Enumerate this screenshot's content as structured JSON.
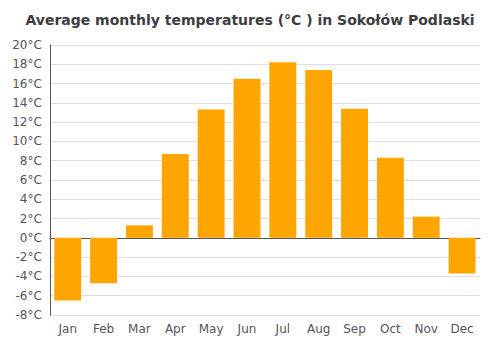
{
  "chart_data": {
    "type": "bar",
    "title": "Average monthly temperatures (°C ) in Sokołów Podlaski",
    "categories": [
      "Jan",
      "Feb",
      "Mar",
      "Apr",
      "May",
      "Jun",
      "Jul",
      "Aug",
      "Sep",
      "Oct",
      "Nov",
      "Dec"
    ],
    "values": [
      -6.5,
      -4.7,
      1.3,
      8.7,
      13.3,
      16.5,
      18.2,
      17.4,
      13.4,
      8.3,
      2.2,
      -3.7
    ],
    "color": "#FFA500",
    "ylim": [
      -8,
      20
    ],
    "yticks": [
      {
        "value": -8,
        "label": "-8°C"
      },
      {
        "value": -6,
        "label": "-6°C"
      },
      {
        "value": -4,
        "label": "-4°C"
      },
      {
        "value": -2,
        "label": "-2°C"
      },
      {
        "value": 0,
        "label": "0°C"
      },
      {
        "value": 2,
        "label": "2°C"
      },
      {
        "value": 4,
        "label": "4°C"
      },
      {
        "value": 6,
        "label": "6°C"
      },
      {
        "value": 8,
        "label": "8°C"
      },
      {
        "value": 10,
        "label": "10°C"
      },
      {
        "value": 12,
        "label": "12°C"
      },
      {
        "value": 14,
        "label": "14°C"
      },
      {
        "value": 16,
        "label": "16°C"
      },
      {
        "value": 18,
        "label": "18°C"
      },
      {
        "value": 20,
        "label": "20°C"
      }
    ],
    "grid": true
  }
}
